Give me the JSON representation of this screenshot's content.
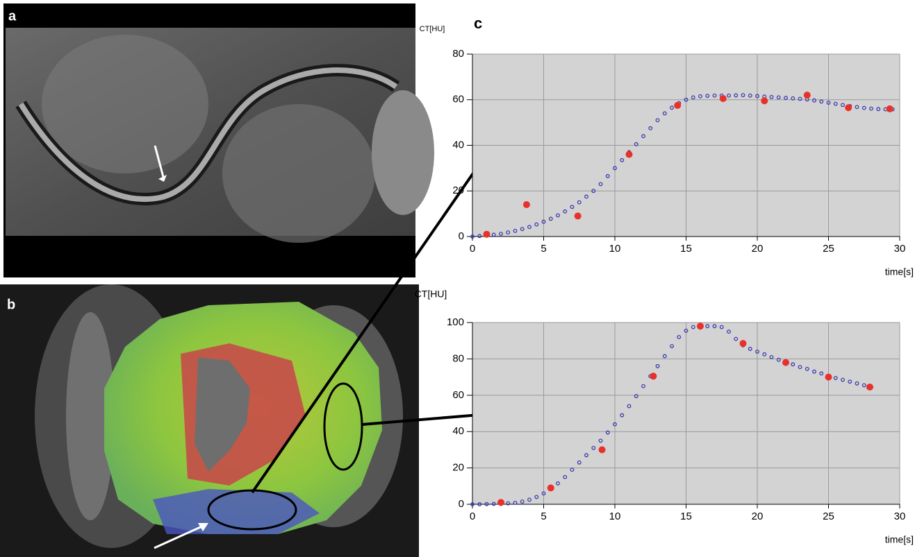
{
  "panel_labels": [
    "a",
    "b",
    "c"
  ],
  "chart_data": [
    {
      "type": "scatter",
      "ylabel": "CT[HU]",
      "xlabel": "time[s]",
      "xlim": [
        0,
        30
      ],
      "xticks": [
        0,
        5,
        10,
        15,
        20,
        25,
        30
      ],
      "ylim": [
        0,
        80
      ],
      "yticks": [
        0,
        20,
        40,
        60,
        80
      ],
      "grid": true,
      "background": "#d3d3d3",
      "series": [
        {
          "color": "#3b3bb0",
          "marker": "open-circle",
          "x": [
            0,
            0.5,
            1,
            1.5,
            2,
            2.5,
            3,
            3.5,
            4,
            4.5,
            5,
            5.5,
            6,
            6.5,
            7,
            7.5,
            8,
            8.5,
            9,
            9.5,
            10,
            10.5,
            11,
            11.5,
            12,
            12.5,
            13,
            13.5,
            14,
            14.5,
            15,
            15.5,
            16,
            16.5,
            17,
            17.5,
            18,
            18.5,
            19,
            19.5,
            20,
            20.5,
            21,
            21.5,
            22,
            22.5,
            23,
            23.5,
            24,
            24.5,
            25,
            25.5,
            26,
            26.5,
            27,
            27.5,
            28,
            28.5,
            29,
            29.5
          ],
          "values": [
            0,
            0.2,
            0.5,
            0.8,
            1.2,
            1.8,
            2.5,
            3.3,
            4.2,
            5.3,
            6.5,
            7.8,
            9.3,
            11,
            13,
            15,
            17.5,
            20,
            23,
            26.5,
            30,
            33.5,
            37,
            40.5,
            44,
            47.5,
            51,
            54,
            56.5,
            58.5,
            60,
            61,
            61.5,
            61.7,
            61.8,
            61.8,
            61.8,
            61.9,
            62,
            61.8,
            61.6,
            61.4,
            61.2,
            61,
            60.8,
            60.6,
            60.4,
            60.1,
            59.7,
            59.2,
            58.7,
            58.2,
            57.7,
            57.2,
            56.8,
            56.4,
            56.1,
            55.9,
            55.8,
            55.8
          ]
        },
        {
          "color": "#e8312a",
          "marker": "filled-circle",
          "x": [
            1,
            3.8,
            7.4,
            11,
            14.4,
            17.6,
            20.5,
            23.5,
            26.4,
            29.3
          ],
          "values": [
            1,
            14,
            9,
            36,
            57.5,
            60.5,
            59.5,
            62,
            56.5,
            56
          ]
        }
      ]
    },
    {
      "type": "scatter",
      "ylabel": "CT[HU]",
      "xlabel": "time[s]",
      "xlim": [
        0,
        30
      ],
      "xticks": [
        0,
        5,
        10,
        15,
        20,
        25,
        30
      ],
      "ylim": [
        0,
        100
      ],
      "yticks": [
        0,
        20,
        40,
        60,
        80,
        100
      ],
      "grid": true,
      "background": "#d3d3d3",
      "series": [
        {
          "color": "#3b3bb0",
          "marker": "open-circle",
          "x": [
            0,
            0.5,
            1,
            1.5,
            2,
            2.5,
            3,
            3.5,
            4,
            4.5,
            5,
            5.5,
            6,
            6.5,
            7,
            7.5,
            8,
            8.5,
            9,
            9.5,
            10,
            10.5,
            11,
            11.5,
            12,
            12.5,
            13,
            13.5,
            14,
            14.5,
            15,
            15.5,
            16,
            16.5,
            17,
            17.5,
            18,
            18.5,
            19,
            19.5,
            20,
            20.5,
            21,
            21.5,
            22,
            22.5,
            23,
            23.5,
            24,
            24.5,
            25,
            25.5,
            26,
            26.5,
            27,
            27.5,
            28
          ],
          "values": [
            0,
            0,
            0.1,
            0.2,
            0.3,
            0.5,
            0.8,
            1.5,
            2.5,
            4,
            6,
            8.5,
            11.5,
            15,
            19,
            23,
            27,
            31,
            35,
            39.5,
            44,
            49,
            54,
            59.5,
            65,
            70.5,
            76,
            81.5,
            87,
            92,
            95.5,
            97.5,
            98,
            98,
            98,
            97.5,
            95,
            91,
            87.5,
            85.5,
            84,
            82.5,
            81,
            79.5,
            78,
            77,
            75.5,
            74.5,
            73,
            72,
            70.5,
            69.5,
            68.5,
            67.5,
            66.5,
            65.5,
            64.5
          ]
        },
        {
          "color": "#e8312a",
          "marker": "filled-circle",
          "x": [
            2,
            5.5,
            9.1,
            12.7,
            16,
            19,
            22,
            25,
            27.9
          ],
          "values": [
            1,
            9,
            30,
            70.5,
            98,
            88.5,
            78,
            70,
            64.5
          ]
        }
      ]
    }
  ]
}
